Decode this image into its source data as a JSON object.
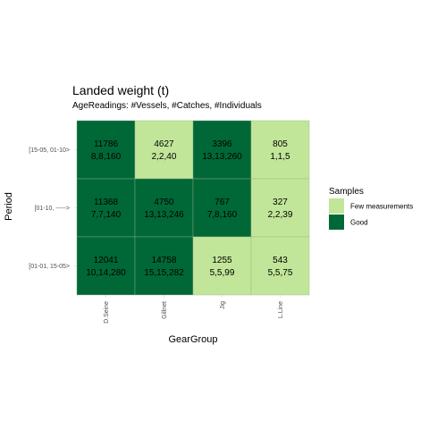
{
  "chart_data": {
    "type": "heatmap",
    "title": "Landed weight (t)",
    "subtitle": "AgeReadings: #Vessels, #Catches, #Individuals",
    "xlabel": "GearGroup",
    "ylabel": "Period",
    "x_categories": [
      "D.Seine",
      "Gillnet",
      "Jig",
      "L.Line"
    ],
    "y_categories": [
      "[15-05, 01-10>",
      "[01-10, ----->",
      "[01-01, 15-05>"
    ],
    "cells": [
      {
        "x": "D.Seine",
        "y": "[15-05, 01-10>",
        "weight": "11786",
        "readings": "8,8,160",
        "samples": "Good"
      },
      {
        "x": "Gillnet",
        "y": "[15-05, 01-10>",
        "weight": "4627",
        "readings": "2,2,40",
        "samples": "Few measurements"
      },
      {
        "x": "Jig",
        "y": "[15-05, 01-10>",
        "weight": "3396",
        "readings": "13,13,260",
        "samples": "Good"
      },
      {
        "x": "L.Line",
        "y": "[15-05, 01-10>",
        "weight": "805",
        "readings": "1,1,5",
        "samples": "Few measurements"
      },
      {
        "x": "D.Seine",
        "y": "[01-10, ----->",
        "weight": "11368",
        "readings": "7,7,140",
        "samples": "Good"
      },
      {
        "x": "Gillnet",
        "y": "[01-10, ----->",
        "weight": "4750",
        "readings": "13,13,246",
        "samples": "Good"
      },
      {
        "x": "Jig",
        "y": "[01-10, ----->",
        "weight": "767",
        "readings": "7,8,160",
        "samples": "Good"
      },
      {
        "x": "L.Line",
        "y": "[01-10, ----->",
        "weight": "327",
        "readings": "2,2,39",
        "samples": "Few measurements"
      },
      {
        "x": "D.Seine",
        "y": "[01-01, 15-05>",
        "weight": "12041",
        "readings": "10,14,280",
        "samples": "Good"
      },
      {
        "x": "Gillnet",
        "y": "[01-01, 15-05>",
        "weight": "14758",
        "readings": "15,15,282",
        "samples": "Good"
      },
      {
        "x": "Jig",
        "y": "[01-01, 15-05>",
        "weight": "1255",
        "readings": "5,5,99",
        "samples": "Few measurements"
      },
      {
        "x": "L.Line",
        "y": "[01-01, 15-05>",
        "weight": "543",
        "readings": "5,5,75",
        "samples": "Few measurements"
      }
    ],
    "legend": {
      "title": "Samples",
      "placement": "right",
      "entries": [
        {
          "label": "Few measurements",
          "color": "#c2e699"
        },
        {
          "label": "Good",
          "color": "#006837"
        }
      ]
    },
    "grid": false
  }
}
